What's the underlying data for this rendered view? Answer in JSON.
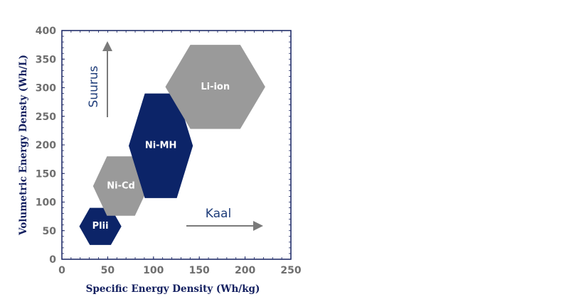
{
  "chart_data": {
    "type": "scatter",
    "title": "",
    "xlabel": "Specific Energy Density (Wh/kg)",
    "ylabel": "Volumetric Energy Densty (Wh/L)",
    "xlim": [
      0,
      250
    ],
    "ylim": [
      0,
      400
    ],
    "x_ticks": [
      "0",
      "50",
      "100",
      "150",
      "200",
      "250"
    ],
    "y_ticks": [
      "0",
      "50",
      "100",
      "150",
      "200",
      "250",
      "300",
      "350",
      "400"
    ],
    "grid": false,
    "regions": [
      {
        "label": "Plii",
        "x_range": [
          19,
          65
        ],
        "y_range": [
          25,
          90
        ],
        "color": "#0c2468"
      },
      {
        "label": "Ni-Cd",
        "x_range": [
          34,
          95
        ],
        "y_range": [
          76,
          180
        ],
        "color": "#9a9a9a"
      },
      {
        "label": "Ni-MH",
        "x_range": [
          73,
          143
        ],
        "y_range": [
          107,
          290
        ],
        "color": "#0c2468"
      },
      {
        "label": "Li-ion",
        "x_range": [
          113,
          222
        ],
        "y_range": [
          228,
          375
        ],
        "color": "#9a9a9a"
      }
    ],
    "annotations": [
      {
        "text": "Suurus",
        "direction": "up"
      },
      {
        "text": "Kaal",
        "direction": "right"
      }
    ]
  },
  "colors": {
    "navy": "#0c2468",
    "gray": "#9a9a9a",
    "arrow": "#7a7a7a",
    "frame": "#142060"
  }
}
